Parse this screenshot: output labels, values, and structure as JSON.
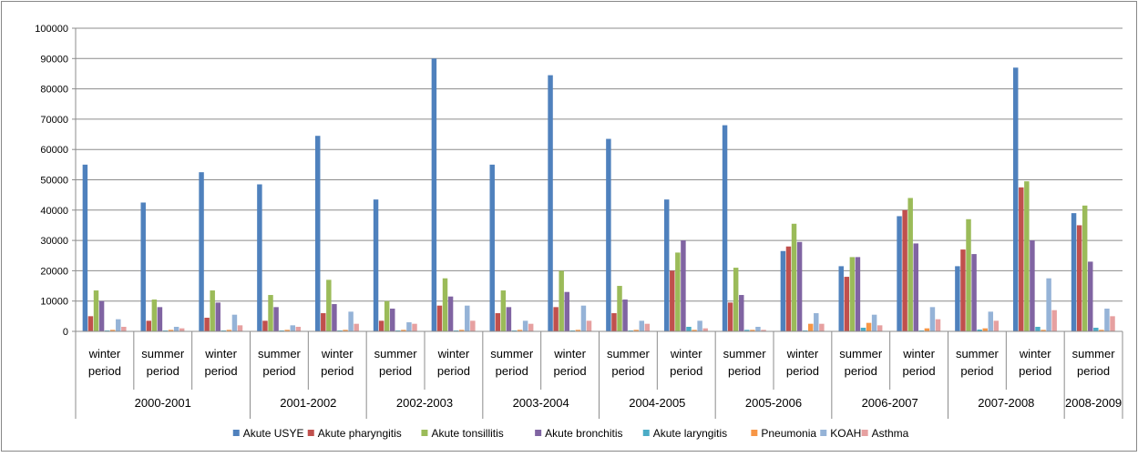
{
  "chart_data": {
    "type": "bar",
    "title": "",
    "xlabel": "",
    "ylabel": "",
    "ylim": [
      0,
      100000
    ],
    "yticks": [
      "0",
      "10000",
      "20000",
      "30000",
      "40000",
      "50000",
      "60000",
      "70000",
      "80000",
      "90000",
      "100000"
    ],
    "categories": [
      {
        "period": "winter period",
        "year": "2000-2001"
      },
      {
        "period": "summer period",
        "year": "2000-2001"
      },
      {
        "period": "winter period",
        "year": "2000-2001"
      },
      {
        "period": "summer period",
        "year": "2001-2002"
      },
      {
        "period": "winter period",
        "year": "2001-2002"
      },
      {
        "period": "summer period",
        "year": "2002-2003"
      },
      {
        "period": "winter period",
        "year": "2002-2003"
      },
      {
        "period": "summer period",
        "year": "2003-2004"
      },
      {
        "period": "winter period",
        "year": "2003-2004"
      },
      {
        "period": "summer period",
        "year": "2004-2005"
      },
      {
        "period": "winter period",
        "year": "2004-2005"
      },
      {
        "period": "summer period",
        "year": "2005-2006"
      },
      {
        "period": "winter period",
        "year": "2005-2006"
      },
      {
        "period": "summer period",
        "year": "2006-2007"
      },
      {
        "period": "winter period",
        "year": "2006-2007"
      },
      {
        "period": "summer period",
        "year": "2007-2008"
      },
      {
        "period": "winter period",
        "year": "2007-2008"
      },
      {
        "period": "summer period",
        "year": "2008-2009"
      }
    ],
    "year_groups": [
      {
        "label": "2000-2001",
        "count": 3
      },
      {
        "label": "2001-2002",
        "count": 2
      },
      {
        "label": "2002-2003",
        "count": 2
      },
      {
        "label": "2003-2004",
        "count": 2
      },
      {
        "label": "2004-2005",
        "count": 2
      },
      {
        "label": "2005-2006",
        "count": 2
      },
      {
        "label": "2006-2007",
        "count": 2
      },
      {
        "label": "2007-2008",
        "count": 2
      },
      {
        "label": "2008-2009",
        "count": 1
      }
    ],
    "series": [
      {
        "name": "Akute USYE",
        "color": "#4F81BD",
        "values": [
          55000,
          42500,
          52500,
          48500,
          64500,
          43500,
          90000,
          55000,
          84500,
          63500,
          43500,
          68000,
          26500,
          21500,
          38000,
          21500,
          87000,
          39000
        ]
      },
      {
        "name": "Akute pharyngitis",
        "color": "#C0504D",
        "values": [
          5000,
          3500,
          4500,
          3500,
          6000,
          3500,
          8500,
          6000,
          8000,
          6000,
          20000,
          9500,
          28000,
          18000,
          40000,
          27000,
          47500,
          35000
        ]
      },
      {
        "name": "Akute tonsillitis",
        "color": "#9BBB59",
        "values": [
          13500,
          10500,
          13500,
          12000,
          17000,
          10000,
          17500,
          13500,
          20000,
          15000,
          26000,
          21000,
          35500,
          24500,
          44000,
          37000,
          49500,
          41500
        ]
      },
      {
        "name": "Akute bronchitis",
        "color": "#8064A2",
        "values": [
          10000,
          8000,
          9500,
          8000,
          9000,
          7500,
          11500,
          8000,
          13000,
          10500,
          30000,
          12000,
          29500,
          24500,
          29000,
          25500,
          30000,
          23000
        ]
      },
      {
        "name": "Akute laryngitis",
        "color": "#4BACC6",
        "values": [
          300,
          300,
          300,
          300,
          300,
          300,
          300,
          300,
          300,
          300,
          1500,
          500,
          300,
          1200,
          300,
          600,
          1500,
          1200
        ]
      },
      {
        "name": "Pneumonia",
        "color": "#F79646",
        "values": [
          500,
          500,
          500,
          500,
          500,
          500,
          500,
          500,
          500,
          500,
          500,
          500,
          2500,
          2800,
          1000,
          1000,
          500,
          500
        ]
      },
      {
        "name": "KOAH",
        "color": "#95B3D7",
        "values": [
          4000,
          1500,
          5500,
          2000,
          6500,
          3000,
          8500,
          3500,
          8500,
          3500,
          3500,
          1500,
          6000,
          5500,
          8000,
          6500,
          17500,
          7500
        ]
      },
      {
        "name": "Asthma",
        "color": "#E6A0A0",
        "values": [
          1500,
          1000,
          2000,
          1500,
          2500,
          2500,
          3500,
          2500,
          3500,
          2500,
          1000,
          500,
          2500,
          2000,
          4000,
          3500,
          7000,
          5000
        ]
      }
    ],
    "grid": "horizontal",
    "legend_position": "bottom"
  }
}
